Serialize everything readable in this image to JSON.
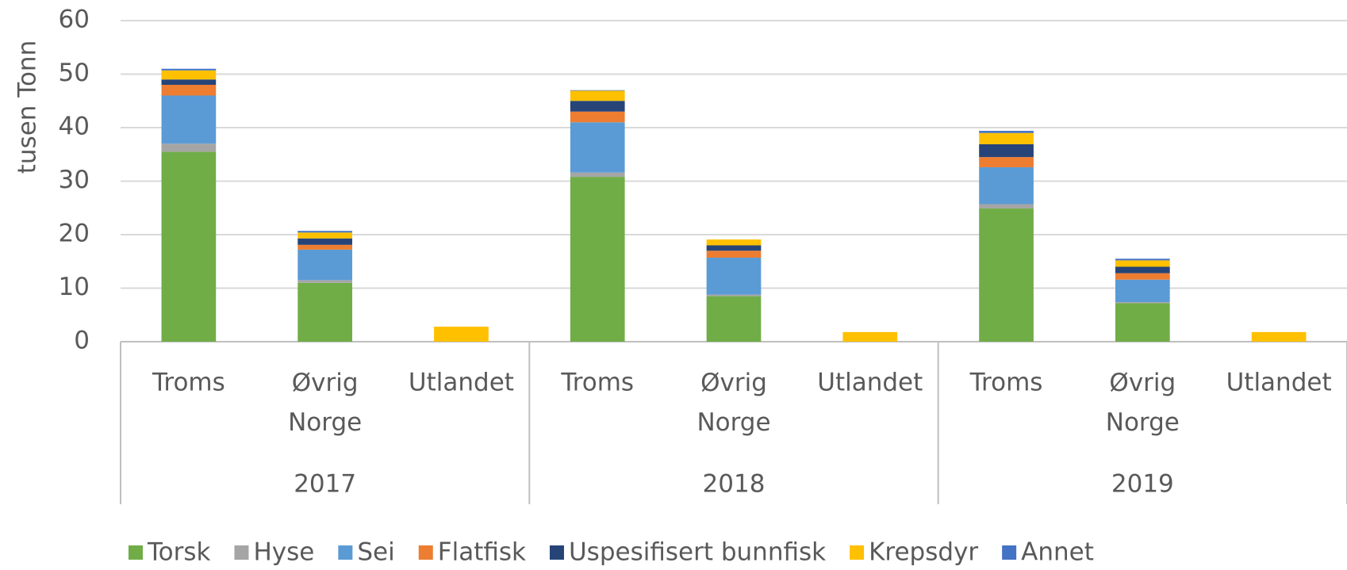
{
  "chart_data": {
    "type": "stacked_bar",
    "y_label": "tusen Tonn",
    "categories": [
      "Troms",
      "Øvrig Norge",
      "Utlandet",
      "Troms",
      "Øvrig Norge",
      "Utlandet",
      "Troms",
      "Øvrig Norge",
      "Utlandet"
    ],
    "group_labels": [
      "2017",
      "2018",
      "2019"
    ],
    "series": [
      {
        "name": "Torsk",
        "color": "#70ad47",
        "values": [
          35.5,
          11,
          0,
          30.8,
          8.5,
          0,
          24.9,
          7.2,
          0
        ]
      },
      {
        "name": "Hyse",
        "color": "#a5a5a5",
        "values": [
          1.5,
          0.5,
          0,
          0.8,
          0.3,
          0,
          0.8,
          0.2,
          0
        ]
      },
      {
        "name": "Sei",
        "color": "#5b9bd5",
        "values": [
          9,
          5.7,
          0,
          9.4,
          6.9,
          0,
          6.9,
          4.2,
          0
        ]
      },
      {
        "name": "Flatfisk",
        "color": "#ed7d31",
        "values": [
          2,
          0.9,
          0,
          2,
          1.3,
          0,
          1.9,
          1.2,
          0
        ]
      },
      {
        "name": "Uspesifisert bunnfisk",
        "color": "#264478",
        "values": [
          1,
          1.2,
          0,
          2,
          1,
          0,
          2.4,
          1.2,
          0
        ]
      },
      {
        "name": "Krepsdyr",
        "color": "#ffc000",
        "values": [
          1.7,
          1.1,
          2.8,
          1.9,
          1.1,
          1.8,
          2.1,
          1.2,
          1.8
        ]
      },
      {
        "name": "Annet",
        "color": "#4472c4",
        "values": [
          0.3,
          0.3,
          0,
          0.1,
          0,
          0,
          0.4,
          0.3,
          0
        ]
      }
    ],
    "ylim": [
      0,
      60
    ],
    "yticks": [
      0,
      10,
      20,
      30,
      40,
      50,
      60
    ],
    "grid": true,
    "legend": "bottom"
  }
}
